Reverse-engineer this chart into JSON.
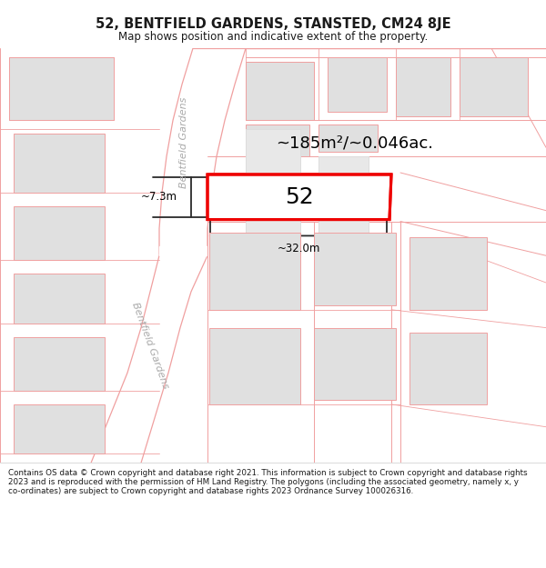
{
  "title": "52, BENTFIELD GARDENS, STANSTED, CM24 8JE",
  "subtitle": "Map shows position and indicative extent of the property.",
  "footer": "Contains OS data © Crown copyright and database right 2021. This information is subject to Crown copyright and database rights 2023 and is reproduced with the permission of HM Land Registry. The polygons (including the associated geometry, namely x, y co-ordinates) are subject to Crown copyright and database rights 2023 Ordnance Survey 100026316.",
  "area_label": "~185m²/~0.046ac.",
  "number_label": "52",
  "dim_width": "~32.0m",
  "dim_height": "~7.3m",
  "bg_color": "#ffffff",
  "map_bg": "#ffffff",
  "road_line_color": "#f0a0a0",
  "road_fill_color": "#ffffff",
  "road_border_color": "#d08080",
  "plot_outline_color": "#ee0000",
  "building_fill": "#e0e0e0",
  "building_edge": "#cccccc",
  "dim_line_color": "#2a2a2a",
  "title_color": "#1a1a1a",
  "street_text_color": "#aaaaaa",
  "street_label": "Bentfield Gardens"
}
